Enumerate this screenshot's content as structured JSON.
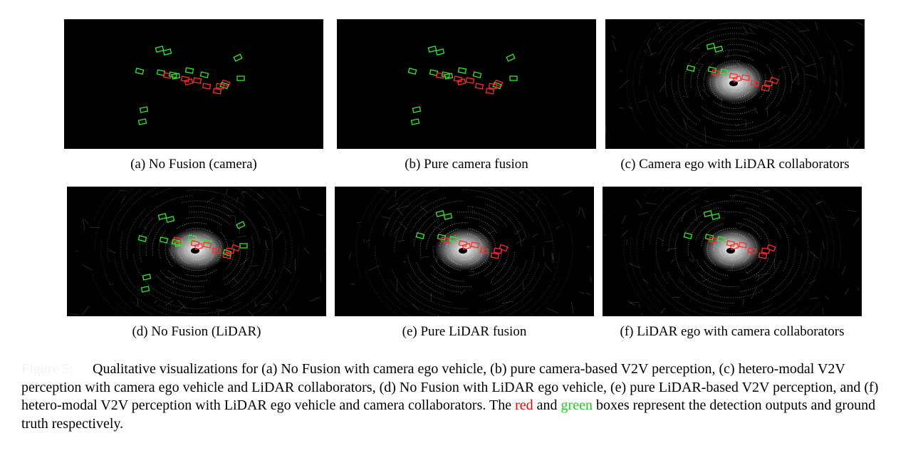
{
  "panels": [
    {
      "id": "a",
      "caption": "(a) No Fusion (camera)",
      "kind": "camera"
    },
    {
      "id": "b",
      "caption": "(b) Pure camera fusion",
      "kind": "camera"
    },
    {
      "id": "c",
      "caption": "(c) Camera ego with LiDAR collaborators",
      "kind": "lidar"
    },
    {
      "id": "d",
      "caption": "(d) No Fusion (LiDAR)",
      "kind": "lidar"
    },
    {
      "id": "e",
      "caption": "(e) Pure LiDAR fusion",
      "kind": "lidar"
    },
    {
      "id": "f",
      "caption": "(f) LiDAR ego with camera collaborators",
      "kind": "lidar"
    }
  ],
  "figure_caption": {
    "label": "Figure 5:",
    "text_part1": "Qualitative visualizations for (a) No Fusion with camera ego vehicle, (b) pure camera-based V2V perception, (c) hetero-modal V2V perception with camera ego vehicle and LiDAR collaborators, (d) No Fusion with LiDAR ego vehicle, (e) pure LiDAR-based V2V perception, and (f) hetero-modal V2V perception with LiDAR ego vehicle and camera collaborators. The ",
    "red_word": "red",
    "and_word": " and ",
    "green_word": "green",
    "text_part2": " boxes represent the detection outputs and ground truth respectively."
  },
  "colors": {
    "detection": "#ff2a2a",
    "ground_truth": "#33e633",
    "background": "#000000"
  }
}
